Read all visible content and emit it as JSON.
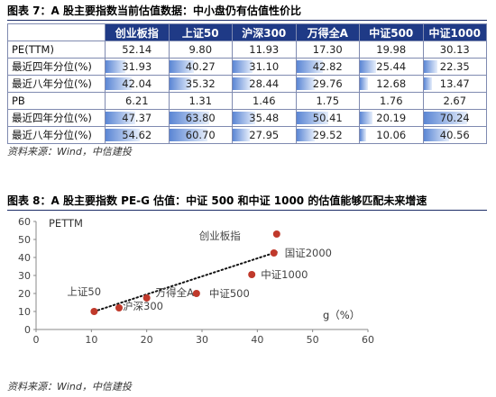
{
  "fig7": {
    "title": "图表 7：A 股主要指数当前估值数据：中小盘仍有估值性价比",
    "source": "资料来源：Wind，中信建投",
    "columns": [
      "创业板指",
      "上证50",
      "沪深300",
      "万得全A",
      "中证500",
      "中证1000"
    ],
    "rows": [
      {
        "label": "PE(TTM)",
        "values": [
          "52.14",
          "9.80",
          "11.93",
          "17.30",
          "19.98",
          "30.13"
        ],
        "bars": null
      },
      {
        "label": "最近四年分位(%)",
        "values": [
          "31.93",
          "40.27",
          "31.10",
          "42.82",
          "25.44",
          "22.35"
        ],
        "bars": [
          31.93,
          40.27,
          31.1,
          42.82,
          25.44,
          22.35
        ]
      },
      {
        "label": "最近八年分位(%)",
        "values": [
          "42.04",
          "35.32",
          "28.44",
          "29.76",
          "12.68",
          "13.47"
        ],
        "bars": [
          42.04,
          35.32,
          28.44,
          29.76,
          12.68,
          13.47
        ]
      },
      {
        "label": "PB",
        "values": [
          "6.21",
          "1.31",
          "1.46",
          "1.75",
          "1.76",
          "2.67"
        ],
        "bars": null
      },
      {
        "label": "最近四年分位(%)",
        "values": [
          "47.37",
          "63.80",
          "35.48",
          "50.41",
          "20.19",
          "70.24"
        ],
        "bars": [
          47.37,
          63.8,
          35.48,
          50.41,
          20.19,
          70.24
        ]
      },
      {
        "label": "最近八年分位(%)",
        "values": [
          "54.62",
          "60.70",
          "27.95",
          "29.52",
          "10.06",
          "40.56"
        ],
        "bars": [
          54.62,
          60.7,
          27.95,
          29.52,
          10.06,
          40.56
        ]
      }
    ]
  },
  "fig8": {
    "title": "图表 8：A 股主要指数 PE-G 估值：中证 500 和中证 1000 的估值能够匹配未来增速",
    "source": "资料来源：Wind，中信建投"
  },
  "chart_data": {
    "type": "scatter",
    "ylabel": "PETTM",
    "xlabel": "g（%）",
    "xlim": [
      0,
      60
    ],
    "ylim": [
      0,
      60
    ],
    "xticks": [
      0,
      10,
      20,
      30,
      40,
      50,
      60
    ],
    "yticks": [
      0,
      10,
      20,
      30,
      40,
      50,
      60
    ],
    "point_color": "#c0392b",
    "points": [
      {
        "label": "上证50",
        "x": 10.5,
        "y": 10
      },
      {
        "label": "沪深300",
        "x": 15,
        "y": 12
      },
      {
        "label": "万得全A",
        "x": 20,
        "y": 17.5
      },
      {
        "label": "中证500",
        "x": 29,
        "y": 20
      },
      {
        "label": "中证1000",
        "x": 39,
        "y": 30.5
      },
      {
        "label": "国证2000",
        "x": 43,
        "y": 42.5
      },
      {
        "label": "创业板指",
        "x": 43.5,
        "y": 53
      }
    ],
    "trendline": {
      "from": [
        10.5,
        10
      ],
      "to": [
        43.5,
        43
      ],
      "style": "dotted"
    }
  }
}
